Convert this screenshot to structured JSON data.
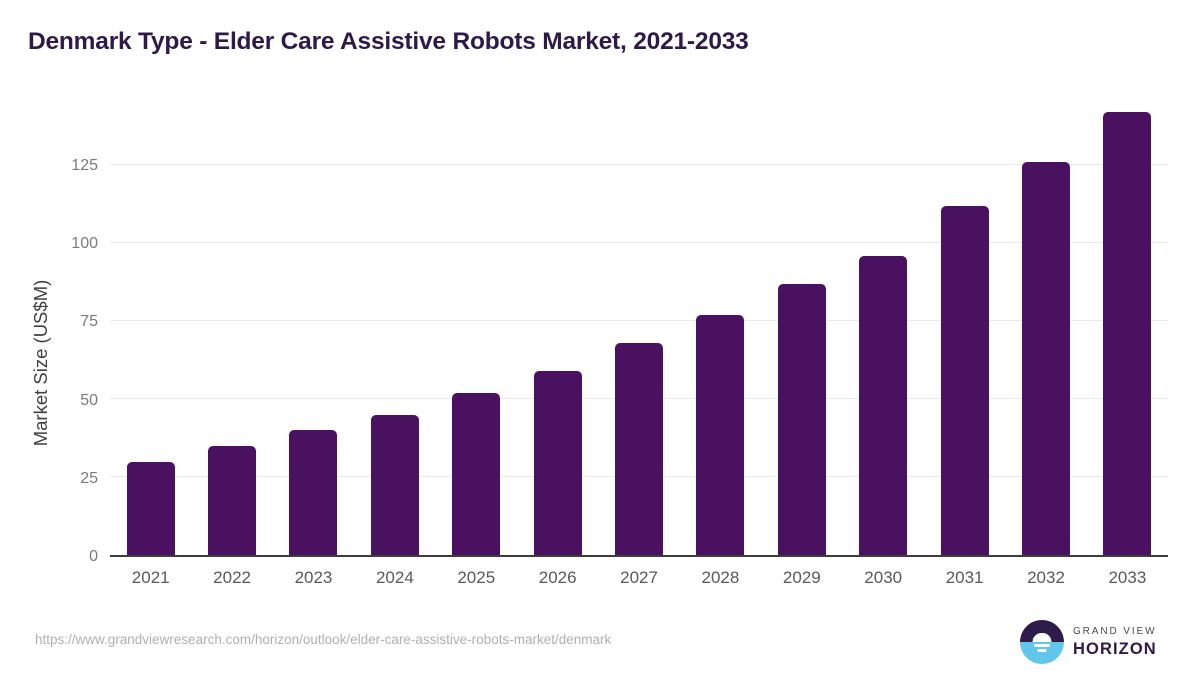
{
  "header": {
    "title": "Denmark Type - Elder Care Assistive Robots Market, 2021-2033"
  },
  "chart_data": {
    "type": "bar",
    "title": "Denmark Type - Elder Care Assistive Robots Market, 2021-2033",
    "categories": [
      "2021",
      "2022",
      "2023",
      "2024",
      "2025",
      "2026",
      "2027",
      "2028",
      "2029",
      "2030",
      "2031",
      "2032",
      "2033"
    ],
    "values": [
      30,
      35,
      40,
      45,
      52,
      59,
      68,
      77,
      87,
      96,
      112,
      126,
      142
    ],
    "xlabel": "",
    "ylabel": "Market Size (US$M)",
    "yticks": [
      0,
      25,
      50,
      75,
      100,
      125
    ],
    "ylim": [
      0,
      146
    ],
    "grid": true,
    "legend": "none",
    "bar_color": "#4a1161"
  },
  "colors": {
    "bar": "#4a1161",
    "title": "#2d1a47",
    "axis_line": "#3d3d3d",
    "gridline": "#eaeaea",
    "tick_label": "#7b7b7b",
    "logo_purple": "#2d1b4a",
    "logo_blue": "#62c5ec"
  },
  "footer": {
    "source_url": "https://www.grandviewresearch.com/horizon/outlook/elder-care-assistive-robots-market/denmark",
    "logo": {
      "line1": "GRAND VIEW",
      "line2": "HORIZON"
    }
  }
}
